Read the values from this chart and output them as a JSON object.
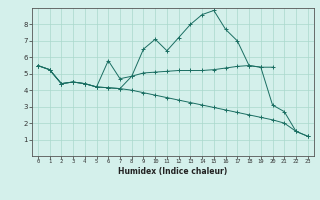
{
  "xlabel": "Humidex (Indice chaleur)",
  "ylabel": "",
  "background_color": "#d4f0eb",
  "grid_color": "#aad8cc",
  "line_color": "#1a6e62",
  "xlim": [
    -0.5,
    23.5
  ],
  "ylim": [
    0,
    9
  ],
  "xticks": [
    0,
    1,
    2,
    3,
    4,
    5,
    6,
    7,
    8,
    9,
    10,
    11,
    12,
    13,
    14,
    15,
    16,
    17,
    18,
    19,
    20,
    21,
    22,
    23
  ],
  "yticks": [
    1,
    2,
    3,
    4,
    5,
    6,
    7,
    8
  ],
  "line1_x": [
    0,
    1,
    2,
    3,
    4,
    5,
    6,
    7,
    8,
    9,
    10,
    11,
    12,
    13,
    14,
    15,
    16,
    17,
    18,
    19,
    20
  ],
  "line1_y": [
    5.5,
    5.25,
    4.4,
    4.5,
    4.4,
    4.2,
    4.15,
    4.1,
    4.85,
    5.05,
    5.1,
    5.15,
    5.2,
    5.2,
    5.2,
    5.25,
    5.35,
    5.45,
    5.5,
    5.4,
    5.4
  ],
  "line2_x": [
    0,
    1,
    2,
    3,
    4,
    5,
    6,
    7,
    8,
    9,
    10,
    11,
    12,
    13,
    14,
    15,
    16,
    17,
    18,
    19,
    20,
    21,
    22,
    23
  ],
  "line2_y": [
    5.5,
    5.25,
    4.4,
    4.5,
    4.4,
    4.2,
    5.8,
    4.7,
    4.85,
    6.5,
    7.1,
    6.4,
    7.2,
    8.0,
    8.6,
    8.85,
    7.7,
    7.0,
    5.5,
    5.4,
    3.1,
    2.7,
    1.5,
    1.2
  ],
  "line3_x": [
    0,
    1,
    2,
    3,
    4,
    5,
    6,
    7,
    8,
    9,
    10,
    11,
    12,
    13,
    14,
    15,
    16,
    17,
    18,
    19,
    20,
    21,
    22,
    23
  ],
  "line3_y": [
    5.5,
    5.25,
    4.4,
    4.5,
    4.4,
    4.2,
    4.15,
    4.1,
    4.0,
    3.85,
    3.7,
    3.55,
    3.4,
    3.25,
    3.1,
    2.95,
    2.8,
    2.65,
    2.5,
    2.35,
    2.2,
    2.0,
    1.5,
    1.2
  ]
}
